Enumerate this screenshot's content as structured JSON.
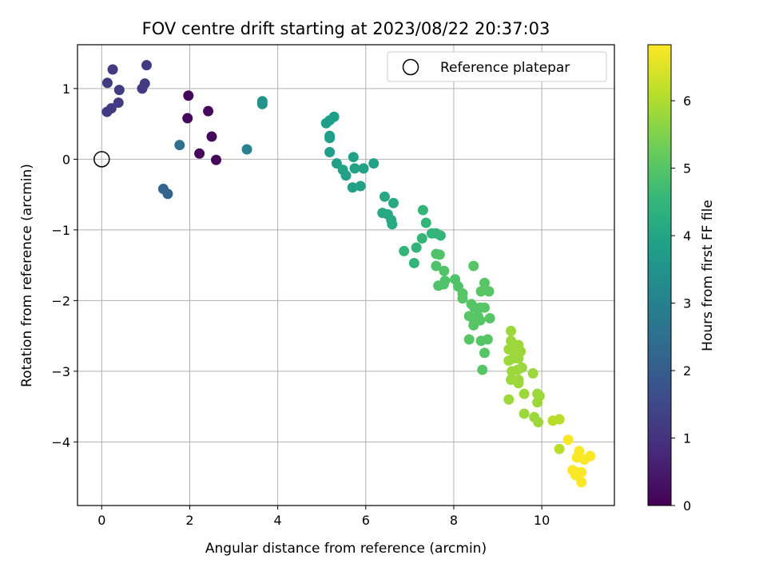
{
  "chart_data": {
    "type": "scatter",
    "title": "FOV centre drift starting at 2023/08/22 20:37:03",
    "xlabel": "Angular distance from reference (arcmin)",
    "ylabel": "Rotation from reference (arcmin)",
    "xlim": [
      -0.55,
      11.65
    ],
    "ylim": [
      -4.9,
      1.62
    ],
    "xticks": [
      0,
      2,
      4,
      6,
      8,
      10
    ],
    "yticks": [
      -4,
      -3,
      -2,
      -1,
      0,
      1
    ],
    "grid": true,
    "legend": {
      "location": "upper right",
      "entries": [
        "Reference platepar"
      ]
    },
    "reference_point": {
      "x": 0,
      "y": 0
    },
    "colorbar": {
      "label": "Hours from first FF file",
      "colormap": "viridis",
      "range": [
        0,
        6.83
      ],
      "ticks": [
        0,
        1,
        2,
        3,
        4,
        5,
        6
      ]
    },
    "points": [
      {
        "x": 0.13,
        "y": 1.08,
        "c": 1.2
      },
      {
        "x": 0.25,
        "y": 1.27,
        "c": 1.2
      },
      {
        "x": 0.4,
        "y": 0.98,
        "c": 1.2
      },
      {
        "x": 0.38,
        "y": 0.8,
        "c": 1.2
      },
      {
        "x": 0.22,
        "y": 0.72,
        "c": 1.2
      },
      {
        "x": 0.12,
        "y": 0.67,
        "c": 1.2
      },
      {
        "x": 0.92,
        "y": 1.0,
        "c": 1.2
      },
      {
        "x": 0.98,
        "y": 1.07,
        "c": 1.2
      },
      {
        "x": 1.02,
        "y": 1.33,
        "c": 1.2
      },
      {
        "x": 1.97,
        "y": 0.9,
        "c": 0.15
      },
      {
        "x": 1.95,
        "y": 0.58,
        "c": 0.15
      },
      {
        "x": 2.42,
        "y": 0.68,
        "c": 0.15
      },
      {
        "x": 2.5,
        "y": 0.32,
        "c": 0.15
      },
      {
        "x": 2.22,
        "y": 0.08,
        "c": 0.15
      },
      {
        "x": 2.6,
        "y": -0.01,
        "c": 0.15
      },
      {
        "x": 1.77,
        "y": 0.2,
        "c": 2.5
      },
      {
        "x": 1.4,
        "y": -0.42,
        "c": 2.2
      },
      {
        "x": 1.5,
        "y": -0.49,
        "c": 2.2
      },
      {
        "x": 3.3,
        "y": 0.14,
        "c": 3.0
      },
      {
        "x": 3.65,
        "y": 0.82,
        "c": 3.5
      },
      {
        "x": 3.65,
        "y": 0.78,
        "c": 3.5
      },
      {
        "x": 5.1,
        "y": 0.51,
        "c": 3.8
      },
      {
        "x": 5.18,
        "y": 0.55,
        "c": 3.8
      },
      {
        "x": 5.28,
        "y": 0.6,
        "c": 3.8
      },
      {
        "x": 5.18,
        "y": 0.33,
        "c": 3.8
      },
      {
        "x": 5.18,
        "y": 0.3,
        "c": 3.8
      },
      {
        "x": 5.18,
        "y": 0.1,
        "c": 3.8
      },
      {
        "x": 5.34,
        "y": -0.06,
        "c": 3.9
      },
      {
        "x": 5.48,
        "y": -0.15,
        "c": 3.9
      },
      {
        "x": 5.55,
        "y": -0.23,
        "c": 3.9
      },
      {
        "x": 5.72,
        "y": 0.03,
        "c": 3.9
      },
      {
        "x": 5.75,
        "y": -0.13,
        "c": 3.9
      },
      {
        "x": 5.95,
        "y": -0.13,
        "c": 3.9
      },
      {
        "x": 6.18,
        "y": -0.06,
        "c": 3.9
      },
      {
        "x": 5.88,
        "y": -0.38,
        "c": 3.9
      },
      {
        "x": 5.7,
        "y": -0.4,
        "c": 3.9
      },
      {
        "x": 6.43,
        "y": -0.53,
        "c": 4.1
      },
      {
        "x": 6.63,
        "y": -0.62,
        "c": 4.1
      },
      {
        "x": 6.38,
        "y": -0.76,
        "c": 4.1
      },
      {
        "x": 6.5,
        "y": -0.78,
        "c": 4.1
      },
      {
        "x": 6.58,
        "y": -0.86,
        "c": 4.1
      },
      {
        "x": 6.6,
        "y": -0.92,
        "c": 4.1
      },
      {
        "x": 7.3,
        "y": -0.72,
        "c": 4.5
      },
      {
        "x": 7.37,
        "y": -0.9,
        "c": 4.5
      },
      {
        "x": 7.5,
        "y": -1.05,
        "c": 4.5
      },
      {
        "x": 7.6,
        "y": -1.05,
        "c": 4.5
      },
      {
        "x": 7.7,
        "y": -1.08,
        "c": 4.5
      },
      {
        "x": 7.28,
        "y": -1.12,
        "c": 4.5
      },
      {
        "x": 7.15,
        "y": -1.25,
        "c": 4.5
      },
      {
        "x": 6.87,
        "y": -1.3,
        "c": 4.5
      },
      {
        "x": 7.1,
        "y": -1.47,
        "c": 4.5
      },
      {
        "x": 7.6,
        "y": -1.34,
        "c": 4.9
      },
      {
        "x": 7.68,
        "y": -1.35,
        "c": 4.9
      },
      {
        "x": 7.6,
        "y": -1.51,
        "c": 4.9
      },
      {
        "x": 7.78,
        "y": -1.58,
        "c": 4.9
      },
      {
        "x": 7.8,
        "y": -1.72,
        "c": 4.9
      },
      {
        "x": 7.65,
        "y": -1.79,
        "c": 4.9
      },
      {
        "x": 7.77,
        "y": -1.77,
        "c": 4.9
      },
      {
        "x": 8.03,
        "y": -1.7,
        "c": 4.9
      },
      {
        "x": 8.1,
        "y": -1.8,
        "c": 4.9
      },
      {
        "x": 8.45,
        "y": -1.51,
        "c": 5.0
      },
      {
        "x": 8.2,
        "y": -1.9,
        "c": 5.0
      },
      {
        "x": 8.2,
        "y": -1.97,
        "c": 5.0
      },
      {
        "x": 8.7,
        "y": -1.75,
        "c": 5.0
      },
      {
        "x": 8.62,
        "y": -1.87,
        "c": 5.0
      },
      {
        "x": 8.8,
        "y": -1.87,
        "c": 5.0
      },
      {
        "x": 8.4,
        "y": -2.05,
        "c": 5.0
      },
      {
        "x": 8.47,
        "y": -2.1,
        "c": 5.0
      },
      {
        "x": 8.6,
        "y": -2.1,
        "c": 5.0
      },
      {
        "x": 8.7,
        "y": -2.1,
        "c": 5.0
      },
      {
        "x": 8.35,
        "y": -2.22,
        "c": 5.0
      },
      {
        "x": 8.45,
        "y": -2.26,
        "c": 5.0
      },
      {
        "x": 8.55,
        "y": -2.22,
        "c": 5.0
      },
      {
        "x": 8.6,
        "y": -2.28,
        "c": 5.0
      },
      {
        "x": 8.82,
        "y": -2.25,
        "c": 5.0
      },
      {
        "x": 8.45,
        "y": -2.35,
        "c": 5.0
      },
      {
        "x": 8.35,
        "y": -2.55,
        "c": 5.0
      },
      {
        "x": 8.62,
        "y": -2.57,
        "c": 5.0
      },
      {
        "x": 8.77,
        "y": -2.55,
        "c": 5.0
      },
      {
        "x": 8.7,
        "y": -2.74,
        "c": 5.0
      },
      {
        "x": 8.65,
        "y": -2.98,
        "c": 5.0
      },
      {
        "x": 9.3,
        "y": -2.43,
        "c": 5.8
      },
      {
        "x": 9.3,
        "y": -2.57,
        "c": 5.8
      },
      {
        "x": 9.25,
        "y": -2.69,
        "c": 5.8
      },
      {
        "x": 9.35,
        "y": -2.7,
        "c": 5.8
      },
      {
        "x": 9.47,
        "y": -2.63,
        "c": 5.8
      },
      {
        "x": 9.52,
        "y": -2.72,
        "c": 5.8
      },
      {
        "x": 9.25,
        "y": -2.85,
        "c": 5.8
      },
      {
        "x": 9.35,
        "y": -2.82,
        "c": 5.8
      },
      {
        "x": 9.47,
        "y": -2.82,
        "c": 5.8
      },
      {
        "x": 9.32,
        "y": -3.0,
        "c": 5.8
      },
      {
        "x": 9.45,
        "y": -2.98,
        "c": 5.8
      },
      {
        "x": 9.55,
        "y": -2.95,
        "c": 5.8
      },
      {
        "x": 9.3,
        "y": -3.12,
        "c": 5.8
      },
      {
        "x": 9.47,
        "y": -3.12,
        "c": 5.8
      },
      {
        "x": 9.47,
        "y": -3.17,
        "c": 5.8
      },
      {
        "x": 9.8,
        "y": -3.03,
        "c": 5.8
      },
      {
        "x": 9.6,
        "y": -3.32,
        "c": 5.8
      },
      {
        "x": 9.9,
        "y": -3.32,
        "c": 5.8
      },
      {
        "x": 9.95,
        "y": -3.35,
        "c": 5.8
      },
      {
        "x": 9.9,
        "y": -3.44,
        "c": 5.8
      },
      {
        "x": 9.25,
        "y": -3.4,
        "c": 5.8
      },
      {
        "x": 9.6,
        "y": -3.6,
        "c": 5.8
      },
      {
        "x": 9.83,
        "y": -3.65,
        "c": 5.8
      },
      {
        "x": 9.92,
        "y": -3.72,
        "c": 5.8
      },
      {
        "x": 10.25,
        "y": -3.7,
        "c": 6.1
      },
      {
        "x": 10.4,
        "y": -3.68,
        "c": 6.1
      },
      {
        "x": 10.4,
        "y": -4.1,
        "c": 6.1
      },
      {
        "x": 10.6,
        "y": -3.97,
        "c": 6.8
      },
      {
        "x": 10.85,
        "y": -4.13,
        "c": 6.8
      },
      {
        "x": 11.1,
        "y": -4.2,
        "c": 6.8
      },
      {
        "x": 10.8,
        "y": -4.22,
        "c": 6.8
      },
      {
        "x": 10.97,
        "y": -4.25,
        "c": 6.8
      },
      {
        "x": 10.7,
        "y": -4.4,
        "c": 6.8
      },
      {
        "x": 10.8,
        "y": -4.43,
        "c": 6.8
      },
      {
        "x": 10.9,
        "y": -4.43,
        "c": 6.8
      },
      {
        "x": 10.77,
        "y": -4.47,
        "c": 6.8
      },
      {
        "x": 10.9,
        "y": -4.57,
        "c": 6.8
      }
    ]
  }
}
